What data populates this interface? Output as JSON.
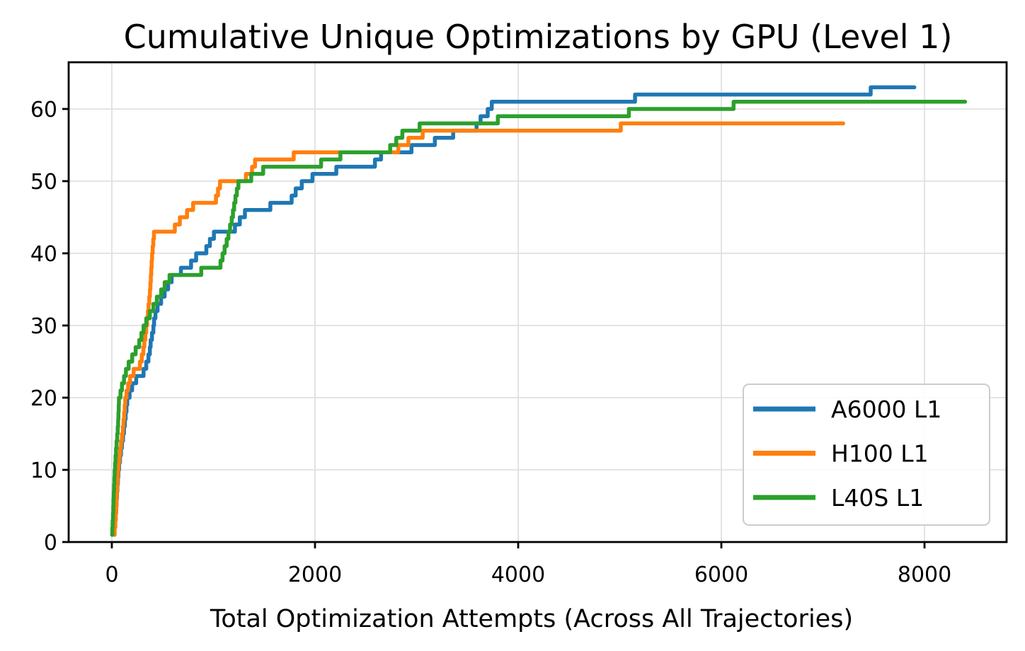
{
  "figure": {
    "title": "Cumulative Unique Optimizations by GPU (Level 1)",
    "xlabel": "Total Optimization Attempts (Across All Trajectories)"
  },
  "chart_data": {
    "type": "line",
    "subtype": "cumulative-step",
    "title": "Cumulative Unique Optimizations by GPU (Level 1)",
    "xlabel": "Total Optimization Attempts (Across All Trajectories)",
    "ylabel": "",
    "x_ticks": [
      0,
      2000,
      4000,
      6000,
      8000
    ],
    "y_ticks": [
      0,
      10,
      20,
      30,
      40,
      50,
      60
    ],
    "xlim": [
      -425,
      8808
    ],
    "ylim": [
      0,
      66.47
    ],
    "grid": true,
    "grid_color": "#e0e0e0",
    "legend_position": "lower right",
    "legend_border_color": "#cccccc",
    "series": [
      {
        "name": "A6000 L1",
        "color": "#1f77b4",
        "end_x": 7900,
        "steps": [
          [
            12,
            1
          ],
          [
            25,
            2
          ],
          [
            32,
            3
          ],
          [
            38,
            4
          ],
          [
            43,
            5
          ],
          [
            47,
            6
          ],
          [
            51,
            7
          ],
          [
            55,
            8
          ],
          [
            60,
            9
          ],
          [
            65,
            10
          ],
          [
            72,
            11
          ],
          [
            80,
            12
          ],
          [
            90,
            13
          ],
          [
            100,
            14
          ],
          [
            110,
            15
          ],
          [
            120,
            16
          ],
          [
            128,
            17
          ],
          [
            136,
            18
          ],
          [
            144,
            19
          ],
          [
            152,
            20
          ],
          [
            175,
            21
          ],
          [
            200,
            22
          ],
          [
            240,
            23
          ],
          [
            312,
            24
          ],
          [
            339,
            25
          ],
          [
            360,
            26
          ],
          [
            374,
            27
          ],
          [
            382,
            28
          ],
          [
            395,
            29
          ],
          [
            409,
            30
          ],
          [
            416,
            31
          ],
          [
            429,
            32
          ],
          [
            450,
            33
          ],
          [
            485,
            34
          ],
          [
            520,
            35
          ],
          [
            554,
            36
          ],
          [
            589,
            37
          ],
          [
            680,
            38
          ],
          [
            780,
            39
          ],
          [
            830,
            40
          ],
          [
            930,
            41
          ],
          [
            965,
            42
          ],
          [
            1005,
            43
          ],
          [
            1212,
            44
          ],
          [
            1260,
            45
          ],
          [
            1310,
            46
          ],
          [
            1560,
            47
          ],
          [
            1770,
            48
          ],
          [
            1810,
            49
          ],
          [
            1870,
            50
          ],
          [
            1975,
            51
          ],
          [
            2210,
            52
          ],
          [
            2590,
            53
          ],
          [
            2650,
            54
          ],
          [
            2950,
            55
          ],
          [
            3180,
            56
          ],
          [
            3360,
            57
          ],
          [
            3590,
            58
          ],
          [
            3630,
            59
          ],
          [
            3700,
            60
          ],
          [
            3740,
            61
          ],
          [
            5150,
            62
          ],
          [
            7470,
            63
          ]
        ]
      },
      {
        "name": "H100 L1",
        "color": "#ff7f0e",
        "end_x": 7200,
        "steps": [
          [
            20,
            1
          ],
          [
            28,
            2
          ],
          [
            34,
            3
          ],
          [
            39,
            4
          ],
          [
            43,
            5
          ],
          [
            46,
            6
          ],
          [
            49,
            7
          ],
          [
            52,
            8
          ],
          [
            56,
            9
          ],
          [
            60,
            10
          ],
          [
            66,
            11
          ],
          [
            73,
            12
          ],
          [
            81,
            13
          ],
          [
            90,
            14
          ],
          [
            100,
            15
          ],
          [
            108,
            16
          ],
          [
            115,
            17
          ],
          [
            121,
            18
          ],
          [
            127,
            19
          ],
          [
            132,
            20
          ],
          [
            145,
            21
          ],
          [
            160,
            22
          ],
          [
            180,
            23
          ],
          [
            215,
            24
          ],
          [
            277,
            25
          ],
          [
            295,
            26
          ],
          [
            310,
            27
          ],
          [
            320,
            28
          ],
          [
            330,
            29
          ],
          [
            339,
            30
          ],
          [
            347,
            31
          ],
          [
            355,
            32
          ],
          [
            362,
            33
          ],
          [
            369,
            34
          ],
          [
            375,
            35
          ],
          [
            380,
            36
          ],
          [
            384,
            37
          ],
          [
            388,
            38
          ],
          [
            392,
            39
          ],
          [
            396,
            40
          ],
          [
            402,
            41
          ],
          [
            408,
            42
          ],
          [
            415,
            43
          ],
          [
            620,
            44
          ],
          [
            670,
            45
          ],
          [
            740,
            46
          ],
          [
            800,
            47
          ],
          [
            1025,
            48
          ],
          [
            1045,
            49
          ],
          [
            1065,
            50
          ],
          [
            1320,
            51
          ],
          [
            1380,
            52
          ],
          [
            1410,
            53
          ],
          [
            1790,
            54
          ],
          [
            2820,
            55
          ],
          [
            2920,
            56
          ],
          [
            3060,
            57
          ],
          [
            5010,
            58
          ]
        ]
      },
      {
        "name": "L40S L1",
        "color": "#2ca02c",
        "end_x": 8400,
        "steps": [
          [
            2,
            1
          ],
          [
            5,
            2
          ],
          [
            8,
            3
          ],
          [
            11,
            4
          ],
          [
            14,
            5
          ],
          [
            16,
            6
          ],
          [
            19,
            7
          ],
          [
            22,
            8
          ],
          [
            25,
            9
          ],
          [
            28,
            10
          ],
          [
            32,
            11
          ],
          [
            36,
            12
          ],
          [
            41,
            13
          ],
          [
            47,
            14
          ],
          [
            53,
            15
          ],
          [
            58,
            16
          ],
          [
            62,
            17
          ],
          [
            65,
            18
          ],
          [
            68,
            19
          ],
          [
            70,
            20
          ],
          [
            85,
            21
          ],
          [
            100,
            22
          ],
          [
            120,
            23
          ],
          [
            139,
            24
          ],
          [
            166,
            25
          ],
          [
            201,
            26
          ],
          [
            234,
            27
          ],
          [
            270,
            28
          ],
          [
            291,
            29
          ],
          [
            312,
            30
          ],
          [
            339,
            31
          ],
          [
            374,
            32
          ],
          [
            409,
            33
          ],
          [
            443,
            34
          ],
          [
            485,
            35
          ],
          [
            520,
            36
          ],
          [
            568,
            37
          ],
          [
            880,
            38
          ],
          [
            1070,
            39
          ],
          [
            1090,
            40
          ],
          [
            1110,
            41
          ],
          [
            1130,
            42
          ],
          [
            1148,
            43
          ],
          [
            1164,
            44
          ],
          [
            1180,
            45
          ],
          [
            1192,
            46
          ],
          [
            1204,
            47
          ],
          [
            1217,
            48
          ],
          [
            1231,
            49
          ],
          [
            1246,
            50
          ],
          [
            1372,
            51
          ],
          [
            1490,
            52
          ],
          [
            2060,
            53
          ],
          [
            2250,
            54
          ],
          [
            2740,
            55
          ],
          [
            2800,
            56
          ],
          [
            2860,
            57
          ],
          [
            3030,
            58
          ],
          [
            3800,
            59
          ],
          [
            5090,
            60
          ],
          [
            6120,
            61
          ]
        ]
      }
    ]
  }
}
